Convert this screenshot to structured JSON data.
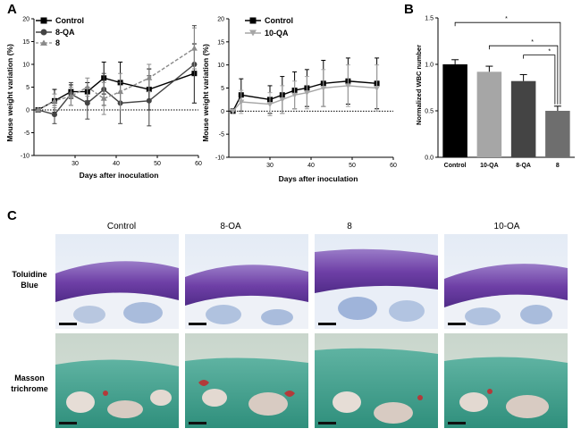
{
  "panel_labels": {
    "a": "A",
    "b": "B",
    "c": "C"
  },
  "colors": {
    "control": "#000000",
    "oa8": "#444444",
    "c8": "#8a8a8a",
    "oa10": "#a6a6a6",
    "bar8": "#6e6e6e"
  },
  "chart_data": [
    {
      "id": "A-left",
      "type": "line",
      "xlabel": "Days after inoculation",
      "ylabel": "Mouse weight variation (%)",
      "xlim": [
        20,
        60
      ],
      "ylim": [
        -10,
        20
      ],
      "xticks": [
        "30",
        "40",
        "50",
        "60"
      ],
      "yticks": [
        "-10",
        "-5",
        "0",
        "5",
        "10",
        "15",
        "20"
      ],
      "series": [
        {
          "name": "Control",
          "x": [
            21,
            25,
            29,
            33,
            37,
            41,
            48,
            59
          ],
          "y": [
            0,
            2,
            4,
            4,
            7,
            6,
            4.5,
            8
          ],
          "err": [
            0,
            2.5,
            1.5,
            2,
            3.5,
            4.5,
            4.5,
            6.5
          ]
        },
        {
          "name": "8-QA",
          "x": [
            21,
            25,
            29,
            33,
            37,
            41,
            48,
            59
          ],
          "y": [
            0,
            -1,
            3.5,
            1.5,
            4.5,
            1.5,
            2,
            10
          ],
          "err": [
            0,
            2,
            2.5,
            3.5,
            3.5,
            4.5,
            5.5,
            8.5
          ]
        },
        {
          "name": "8",
          "x": [
            21,
            25,
            29,
            33,
            37,
            41,
            48,
            59
          ],
          "y": [
            0,
            2,
            3,
            5,
            2.5,
            4,
            7,
            13.5
          ],
          "err": [
            0,
            1.5,
            2,
            2,
            3.5,
            4,
            3,
            4.5
          ]
        }
      ]
    },
    {
      "id": "A-right",
      "type": "line",
      "xlabel": "Days after inoculation",
      "ylabel": "Mouse weight variation (%)",
      "xlim": [
        20,
        60
      ],
      "ylim": [
        -10,
        20
      ],
      "xticks": [
        "30",
        "40",
        "50",
        "60"
      ],
      "yticks": [
        "-10",
        "-5",
        "0",
        "5",
        "10",
        "15",
        "20"
      ],
      "series": [
        {
          "name": "Control",
          "x": [
            21,
            23,
            30,
            33,
            36,
            39,
            43,
            49,
            56
          ],
          "y": [
            0,
            3.5,
            2.5,
            3.5,
            4.5,
            5,
            6,
            6.5,
            6
          ],
          "err": [
            0,
            3.5,
            3,
            4,
            4,
            4,
            5,
            5,
            5.5
          ]
        },
        {
          "name": "10-QA",
          "x": [
            21,
            23,
            30,
            33,
            36,
            39,
            43,
            49,
            56
          ],
          "y": [
            0,
            2,
            1.5,
            2.5,
            3.5,
            4,
            5,
            5.5,
            5
          ],
          "err": [
            0,
            2.5,
            2.5,
            3,
            3,
            3.5,
            4,
            4.5,
            5
          ]
        }
      ]
    },
    {
      "id": "B",
      "type": "bar",
      "ylabel": "Normalized WBC number",
      "ylim": [
        0,
        1.5
      ],
      "yticks": [
        "0.0",
        "0.5",
        "1.0",
        "1.5"
      ],
      "categories": [
        "Control",
        "10-QA",
        "8-QA",
        "8"
      ],
      "values": [
        1.0,
        0.92,
        0.82,
        0.5
      ],
      "errors": [
        0.05,
        0.06,
        0.07,
        0.05
      ],
      "significance": [
        {
          "from": "Control",
          "to": "8",
          "label": "*"
        },
        {
          "from": "10-QA",
          "to": "8",
          "label": "*"
        },
        {
          "from": "8-QA",
          "to": "8",
          "label": "*"
        }
      ]
    }
  ],
  "histology": {
    "columns": [
      "Control",
      "8-OA",
      "8",
      "10-OA"
    ],
    "rows": [
      {
        "label_line1": "Toluidine",
        "label_line2": "Blue"
      },
      {
        "label_line1": "Masson",
        "label_line2": "trichrome"
      }
    ]
  }
}
